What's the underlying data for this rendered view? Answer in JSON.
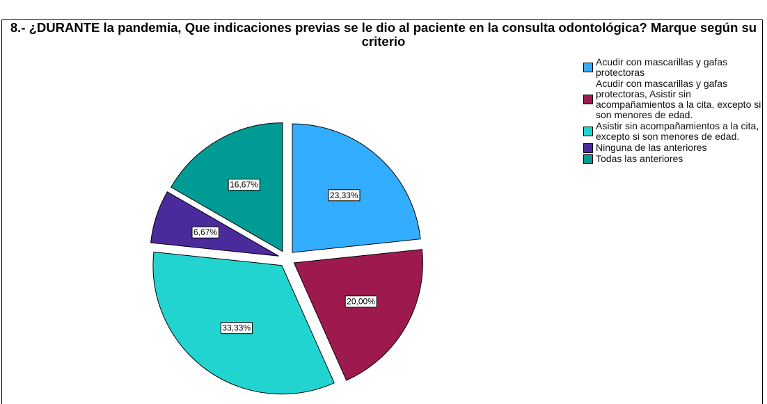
{
  "chart_data": {
    "type": "pie",
    "title": "8.- ¿DURANTE la pandemia, Que indicaciones previas se le dio al paciente en la consulta odontológica? Marque según su criterio",
    "categories": [
      "Acudir con mascarillas y gafas protectoras",
      "Acudir con mascarillas y gafas protectoras, Asistir sin acompañamientos a la cita, excepto si son menores de edad.",
      "Asistir sin acompañamientos a la cita, excepto si son menores de edad.",
      "Ninguna de las anteriores",
      "Todas las anteriores"
    ],
    "values": [
      23.33,
      20.0,
      33.33,
      6.67,
      16.67
    ],
    "value_labels": [
      "23,33%",
      "20,00%",
      "33,33%",
      "6,67%",
      "16,67%"
    ],
    "colors": [
      "#33adff",
      "#9e1a4e",
      "#22d4d0",
      "#4b2a9c",
      "#009b95"
    ],
    "legend": "right"
  }
}
